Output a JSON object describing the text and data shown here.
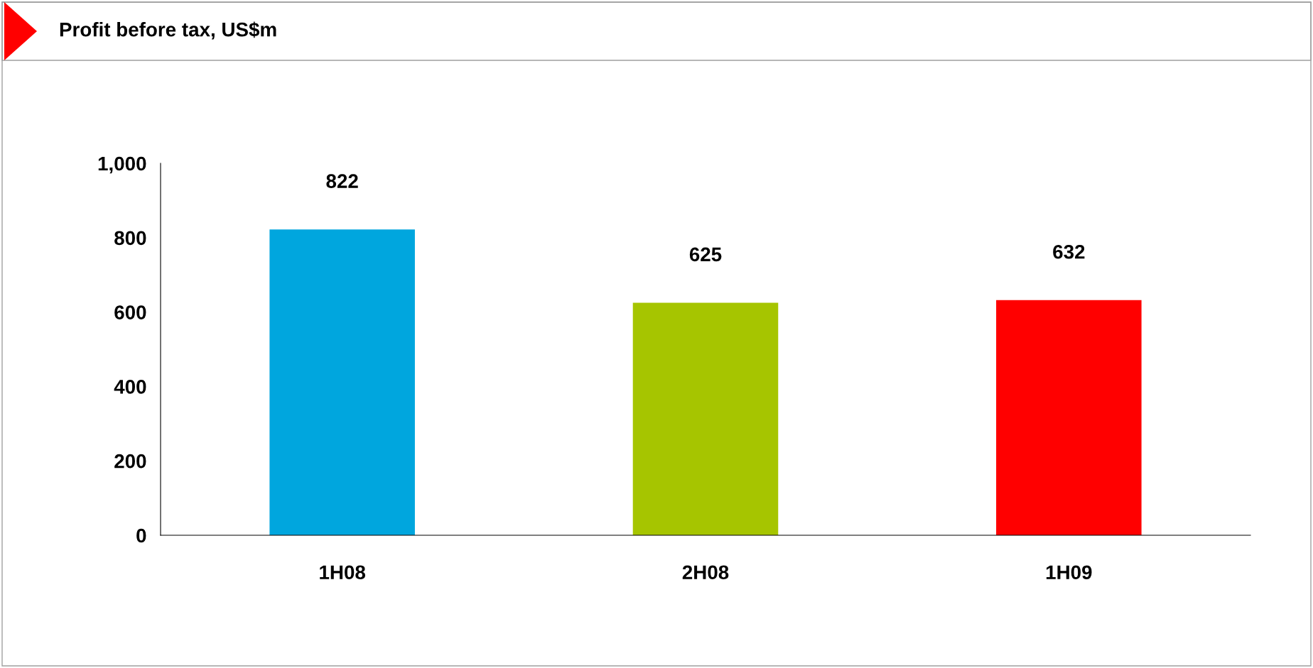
{
  "chart_data": {
    "type": "bar",
    "title": "Profit before tax, US$m",
    "categories": [
      "1H08",
      "2H08",
      "1H09"
    ],
    "values": [
      822,
      625,
      632
    ],
    "colors": [
      "#00a6de",
      "#a6c500",
      "#ff0000"
    ],
    "ylim": [
      0,
      1000
    ],
    "yticks": [
      0,
      {
        "value": 200,
        "label": "200"
      },
      {
        "value": 400,
        "label": "400"
      },
      {
        "value": 600,
        "label": "600"
      },
      {
        "value": 800,
        "label": "800"
      },
      {
        "value": 1000,
        "label": "1,000"
      }
    ],
    "data_labels": true,
    "grid": false,
    "legend": false
  }
}
